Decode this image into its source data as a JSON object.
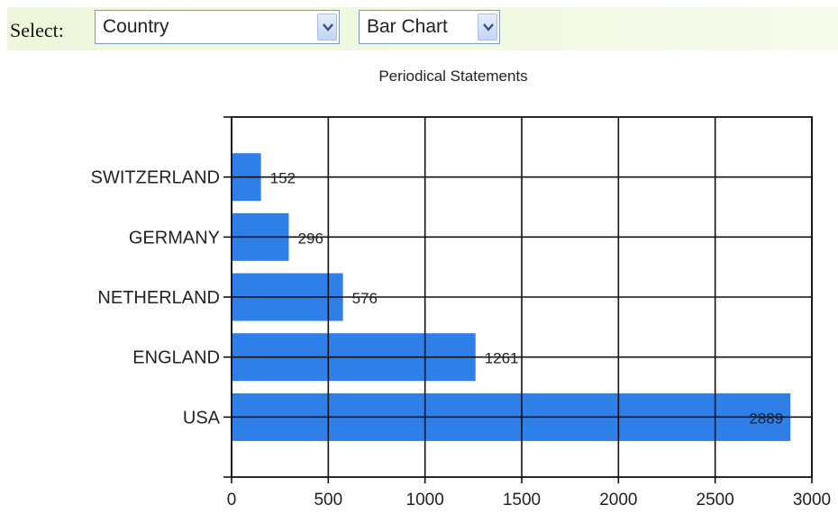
{
  "toolbar": {
    "select_label": "Select:",
    "field_dropdown": {
      "selected": "Country",
      "icon": "chevron-down-icon"
    },
    "chart_type_dropdown": {
      "selected": "Bar Chart",
      "icon": "chevron-down-icon"
    }
  },
  "colors": {
    "bar": "#2f7fe8",
    "grid": "#111111",
    "toolbar_bg": "#eef7dc"
  },
  "chart_data": {
    "type": "bar",
    "orientation": "horizontal",
    "title": "Periodical Statements",
    "categories": [
      "SWITZERLAND",
      "GERMANY",
      "NETHERLAND",
      "ENGLAND",
      "USA"
    ],
    "values": [
      152,
      296,
      576,
      1261,
      2889
    ],
    "data_labels": [
      "152",
      "296",
      "576",
      "1261",
      "2889"
    ],
    "xlim": [
      0,
      3000
    ],
    "x_ticks": [
      "0",
      "500",
      "1000",
      "1500",
      "2000",
      "2500",
      "3000"
    ],
    "xlabel": "",
    "ylabel": "",
    "grid": true,
    "legend": "none"
  }
}
